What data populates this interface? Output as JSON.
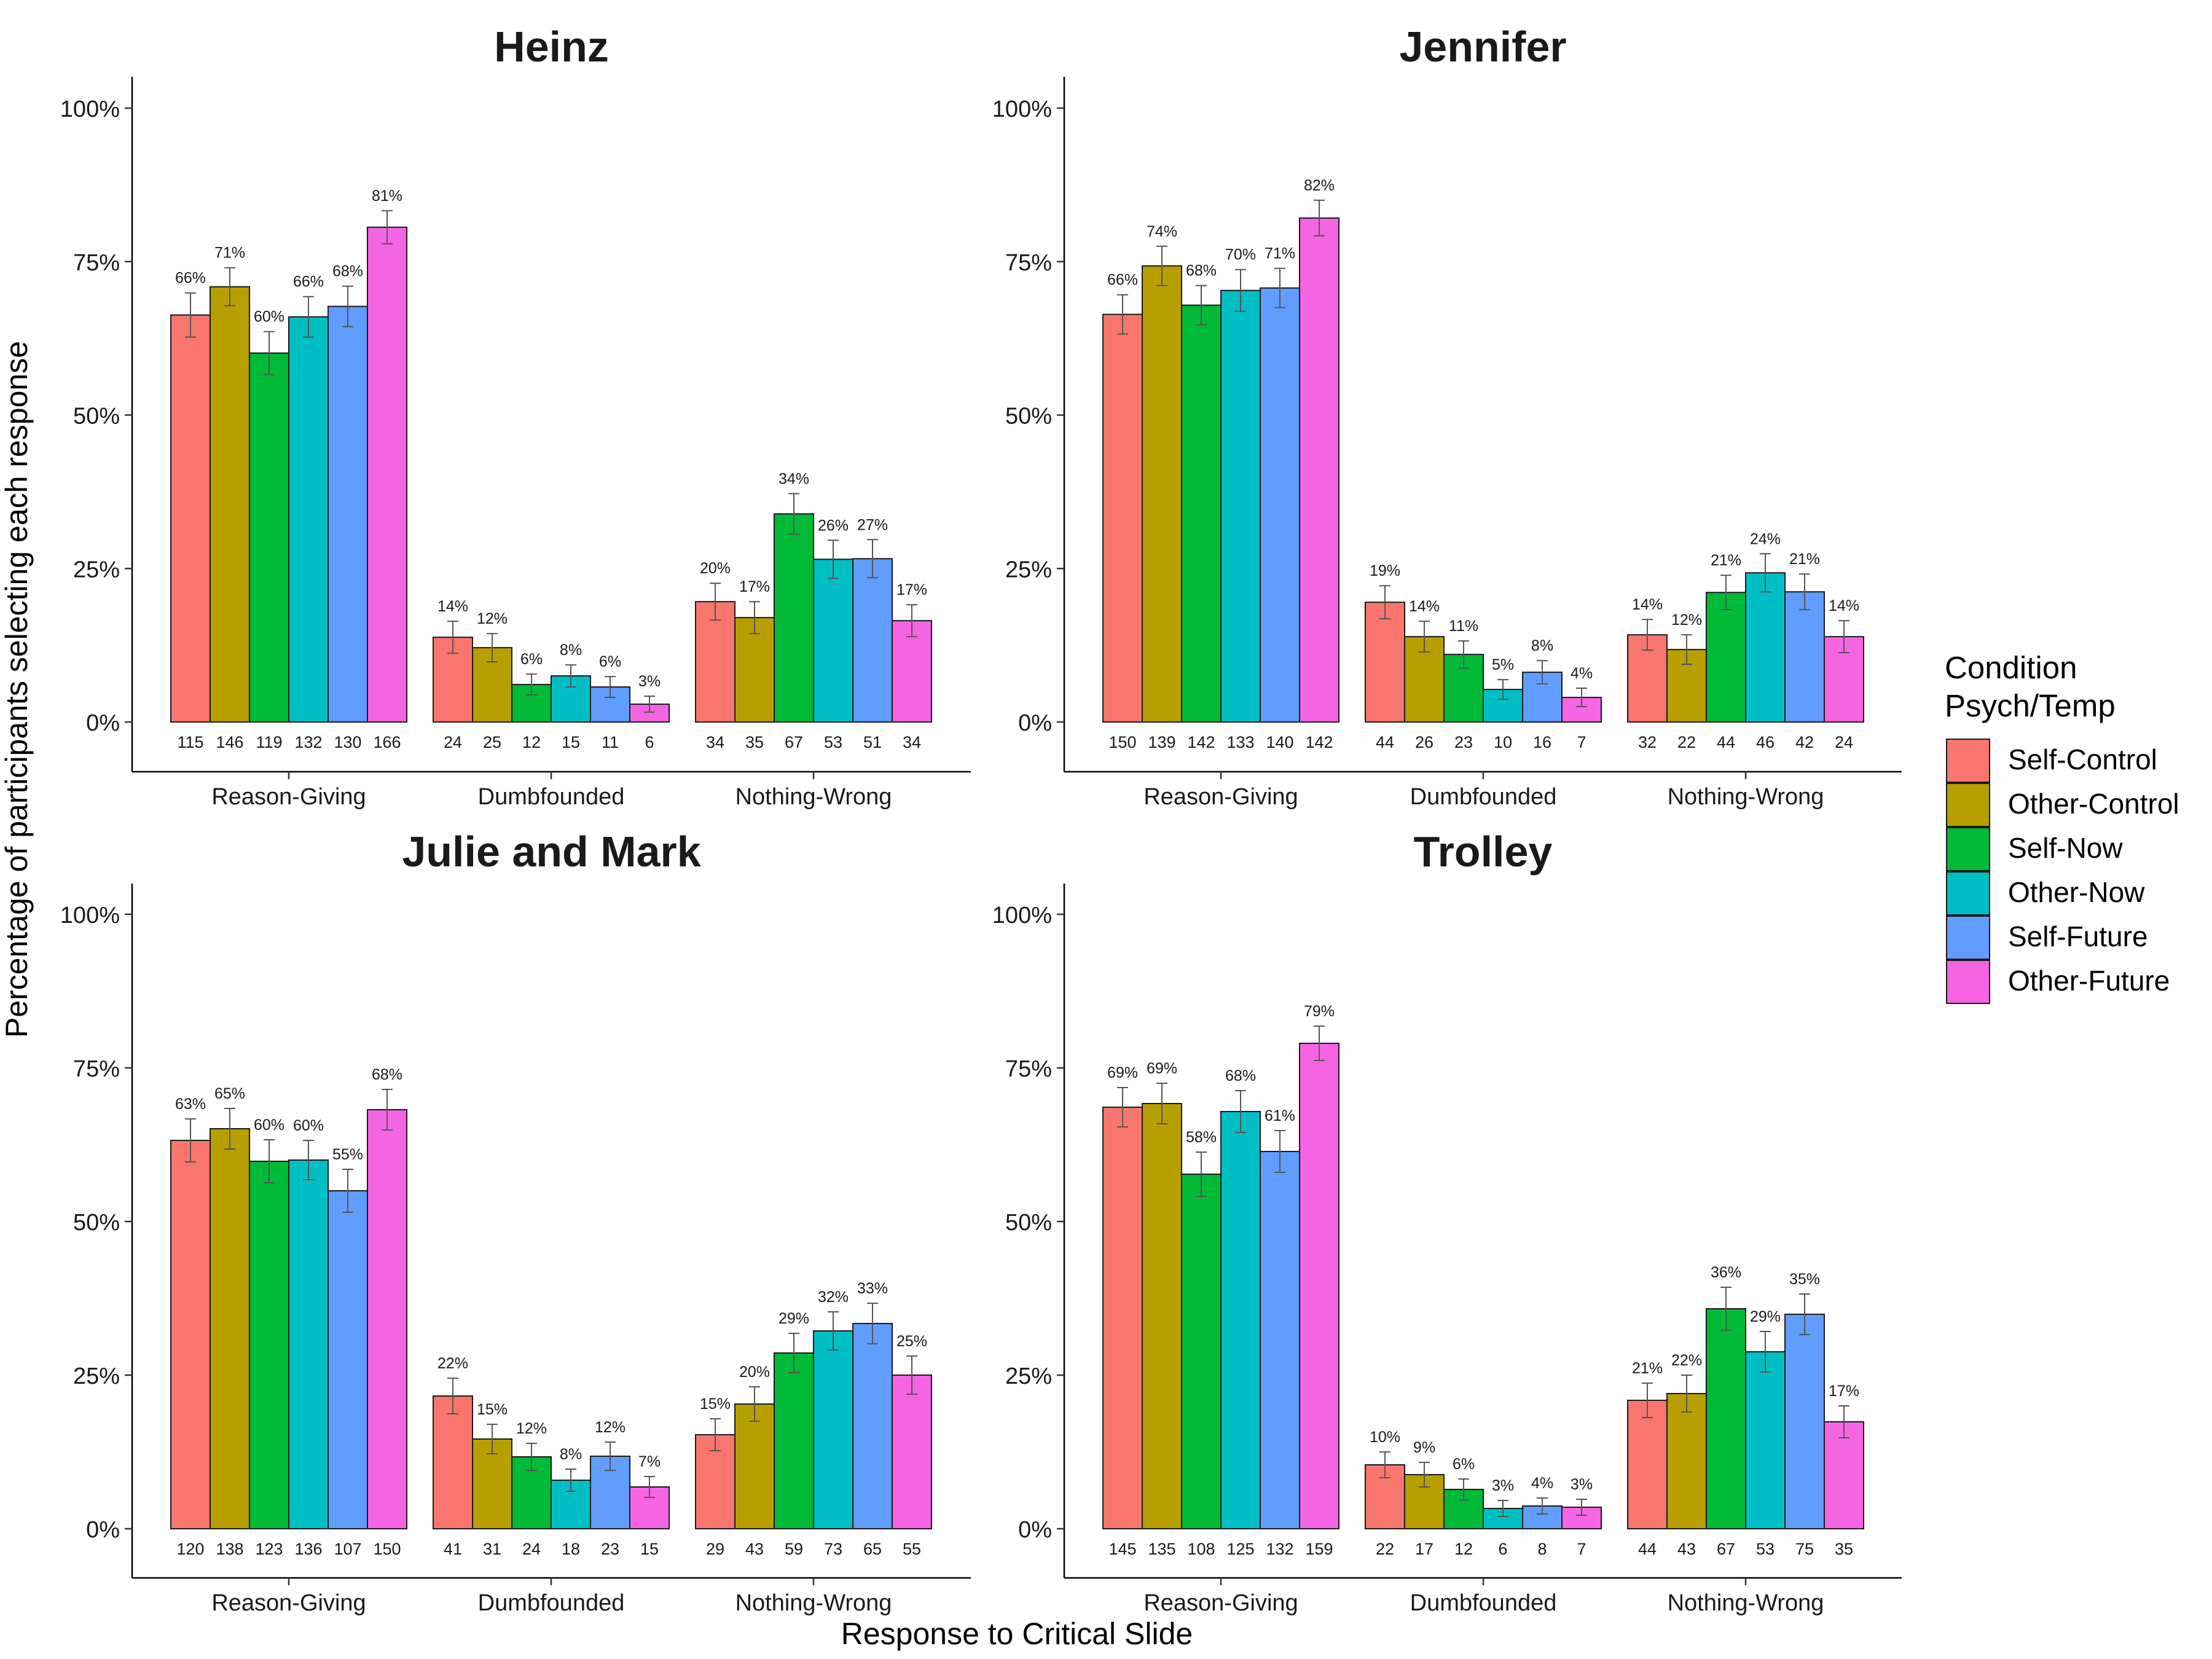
{
  "figure": {
    "ylabel": "Percentage of participants selecting each response",
    "xlabel": "Response to Critical Slide"
  },
  "legend": {
    "title_line1": "Condition",
    "title_line2": "Psych/Temp",
    "placement": "right",
    "entries": [
      {
        "label": "Self-Control",
        "color": "#F8766D"
      },
      {
        "label": "Other-Control",
        "color": "#B79F00"
      },
      {
        "label": "Self-Now",
        "color": "#00BA38"
      },
      {
        "label": "Other-Now",
        "color": "#00BFC4"
      },
      {
        "label": "Self-Future",
        "color": "#619CFF"
      },
      {
        "label": "Other-Future",
        "color": "#F564E3"
      }
    ]
  },
  "chart_data": [
    {
      "type": "bar",
      "title": "Heinz",
      "categories": [
        "Reason-Giving",
        "Dumbfounded",
        "Nothing-Wrong"
      ],
      "y_ticks": [
        "0%",
        "25%",
        "50%",
        "75%",
        "100%"
      ],
      "ylim": [
        0,
        1
      ],
      "grid": false,
      "series": [
        {
          "name": "Self-Control",
          "values": [
            0.663,
            0.138,
            0.196
          ],
          "err": [
            0.036,
            0.026,
            0.03
          ],
          "labels": [
            "66%",
            "14%",
            "20%"
          ],
          "counts": [
            "115",
            "24",
            "34"
          ]
        },
        {
          "name": "Other-Control",
          "values": [
            0.709,
            0.121,
            0.17
          ],
          "err": [
            0.031,
            0.023,
            0.026
          ],
          "labels": [
            "71%",
            "12%",
            "17%"
          ],
          "counts": [
            "146",
            "25",
            "35"
          ]
        },
        {
          "name": "Self-Now",
          "values": [
            0.601,
            0.061,
            0.339
          ],
          "err": [
            0.035,
            0.017,
            0.033
          ],
          "labels": [
            "60%",
            "6%",
            "34%"
          ],
          "counts": [
            "119",
            "12",
            "67"
          ]
        },
        {
          "name": "Other-Now",
          "values": [
            0.66,
            0.075,
            0.265
          ],
          "err": [
            0.033,
            0.018,
            0.031
          ],
          "labels": [
            "66%",
            "8%",
            "26%"
          ],
          "counts": [
            "132",
            "15",
            "53"
          ]
        },
        {
          "name": "Self-Future",
          "values": [
            0.677,
            0.057,
            0.266
          ],
          "err": [
            0.033,
            0.017,
            0.031
          ],
          "labels": [
            "68%",
            "6%",
            "27%"
          ],
          "counts": [
            "130",
            "11",
            "51"
          ]
        },
        {
          "name": "Other-Future",
          "values": [
            0.806,
            0.029,
            0.165
          ],
          "err": [
            0.027,
            0.013,
            0.026
          ],
          "labels": [
            "81%",
            "3%",
            "17%"
          ],
          "counts": [
            "166",
            "6",
            "34"
          ]
        }
      ]
    },
    {
      "type": "bar",
      "title": "Jennifer",
      "categories": [
        "Reason-Giving",
        "Dumbfounded",
        "Nothing-Wrong"
      ],
      "y_ticks": [
        "0%",
        "25%",
        "50%",
        "75%",
        "100%"
      ],
      "ylim": [
        0,
        1
      ],
      "grid": false,
      "series": [
        {
          "name": "Self-Control",
          "values": [
            0.664,
            0.195,
            0.142
          ],
          "err": [
            0.032,
            0.027,
            0.025
          ],
          "labels": [
            "66%",
            "19%",
            "14%"
          ],
          "counts": [
            "150",
            "44",
            "32"
          ]
        },
        {
          "name": "Other-Control",
          "values": [
            0.743,
            0.139,
            0.118
          ],
          "err": [
            0.032,
            0.025,
            0.024
          ],
          "labels": [
            "74%",
            "14%",
            "12%"
          ],
          "counts": [
            "139",
            "26",
            "22"
          ]
        },
        {
          "name": "Self-Now",
          "values": [
            0.679,
            0.11,
            0.211
          ],
          "err": [
            0.032,
            0.022,
            0.028
          ],
          "labels": [
            "68%",
            "11%",
            "21%"
          ],
          "counts": [
            "142",
            "23",
            "44"
          ]
        },
        {
          "name": "Other-Now",
          "values": [
            0.703,
            0.053,
            0.243
          ],
          "err": [
            0.034,
            0.016,
            0.031
          ],
          "labels": [
            "70%",
            "5%",
            "24%"
          ],
          "counts": [
            "133",
            "10",
            "46"
          ]
        },
        {
          "name": "Self-Future",
          "values": [
            0.707,
            0.081,
            0.212
          ],
          "err": [
            0.032,
            0.019,
            0.029
          ],
          "labels": [
            "71%",
            "8%",
            "21%"
          ],
          "counts": [
            "140",
            "16",
            "42"
          ]
        },
        {
          "name": "Other-Future",
          "values": [
            0.821,
            0.04,
            0.139
          ],
          "err": [
            0.029,
            0.015,
            0.026
          ],
          "labels": [
            "82%",
            "4%",
            "14%"
          ],
          "counts": [
            "142",
            "7",
            "24"
          ]
        }
      ]
    },
    {
      "type": "bar",
      "title": "Julie and Mark",
      "categories": [
        "Reason-Giving",
        "Dumbfounded",
        "Nothing-Wrong"
      ],
      "y_ticks": [
        "0%",
        "25%",
        "50%",
        "75%",
        "100%"
      ],
      "ylim": [
        0,
        1
      ],
      "grid": false,
      "series": [
        {
          "name": "Self-Control",
          "values": [
            0.632,
            0.216,
            0.153
          ],
          "err": [
            0.035,
            0.029,
            0.026
          ],
          "labels": [
            "63%",
            "22%",
            "15%"
          ],
          "counts": [
            "120",
            "41",
            "29"
          ]
        },
        {
          "name": "Other-Control",
          "values": [
            0.651,
            0.146,
            0.203
          ],
          "err": [
            0.033,
            0.024,
            0.028
          ],
          "labels": [
            "65%",
            "15%",
            "20%"
          ],
          "counts": [
            "138",
            "31",
            "43"
          ]
        },
        {
          "name": "Self-Now",
          "values": [
            0.598,
            0.117,
            0.286
          ],
          "err": [
            0.035,
            0.022,
            0.032
          ],
          "labels": [
            "60%",
            "12%",
            "29%"
          ],
          "counts": [
            "123",
            "24",
            "59"
          ]
        },
        {
          "name": "Other-Now",
          "values": [
            0.6,
            0.079,
            0.322
          ],
          "err": [
            0.032,
            0.018,
            0.031
          ],
          "labels": [
            "60%",
            "8%",
            "32%"
          ],
          "counts": [
            "136",
            "18",
            "73"
          ]
        },
        {
          "name": "Self-Future",
          "values": [
            0.55,
            0.118,
            0.334
          ],
          "err": [
            0.035,
            0.023,
            0.033
          ],
          "labels": [
            "55%",
            "12%",
            "33%"
          ],
          "counts": [
            "107",
            "23",
            "65"
          ]
        },
        {
          "name": "Other-Future",
          "values": [
            0.682,
            0.068,
            0.25
          ],
          "err": [
            0.033,
            0.017,
            0.031
          ],
          "labels": [
            "68%",
            "7%",
            "25%"
          ],
          "counts": [
            "150",
            "15",
            "55"
          ]
        }
      ]
    },
    {
      "type": "bar",
      "title": "Trolley",
      "categories": [
        "Reason-Giving",
        "Dumbfounded",
        "Nothing-Wrong"
      ],
      "y_ticks": [
        "0%",
        "25%",
        "50%",
        "75%",
        "100%"
      ],
      "ylim": [
        0,
        1
      ],
      "grid": false,
      "series": [
        {
          "name": "Self-Control",
          "values": [
            0.686,
            0.104,
            0.209
          ],
          "err": [
            0.032,
            0.021,
            0.028
          ],
          "labels": [
            "69%",
            "10%",
            "21%"
          ],
          "counts": [
            "145",
            "22",
            "44"
          ]
        },
        {
          "name": "Other-Control",
          "values": [
            0.692,
            0.088,
            0.22
          ],
          "err": [
            0.033,
            0.02,
            0.03
          ],
          "labels": [
            "69%",
            "9%",
            "22%"
          ],
          "counts": [
            "135",
            "17",
            "43"
          ]
        },
        {
          "name": "Self-Now",
          "values": [
            0.577,
            0.064,
            0.358
          ],
          "err": [
            0.036,
            0.017,
            0.035
          ],
          "labels": [
            "58%",
            "6%",
            "36%"
          ],
          "counts": [
            "108",
            "12",
            "67"
          ]
        },
        {
          "name": "Other-Now",
          "values": [
            0.679,
            0.033,
            0.288
          ],
          "err": [
            0.034,
            0.013,
            0.033
          ],
          "labels": [
            "68%",
            "3%",
            "29%"
          ],
          "counts": [
            "125",
            "6",
            "53"
          ]
        },
        {
          "name": "Self-Future",
          "values": [
            0.614,
            0.037,
            0.349
          ],
          "err": [
            0.034,
            0.013,
            0.033
          ],
          "labels": [
            "61%",
            "4%",
            "35%"
          ],
          "counts": [
            "132",
            "8",
            "75"
          ]
        },
        {
          "name": "Other-Future",
          "values": [
            0.79,
            0.035,
            0.174
          ],
          "err": [
            0.028,
            0.013,
            0.026
          ],
          "labels": [
            "79%",
            "3%",
            "17%"
          ],
          "counts": [
            "159",
            "7",
            "35"
          ]
        }
      ]
    }
  ]
}
